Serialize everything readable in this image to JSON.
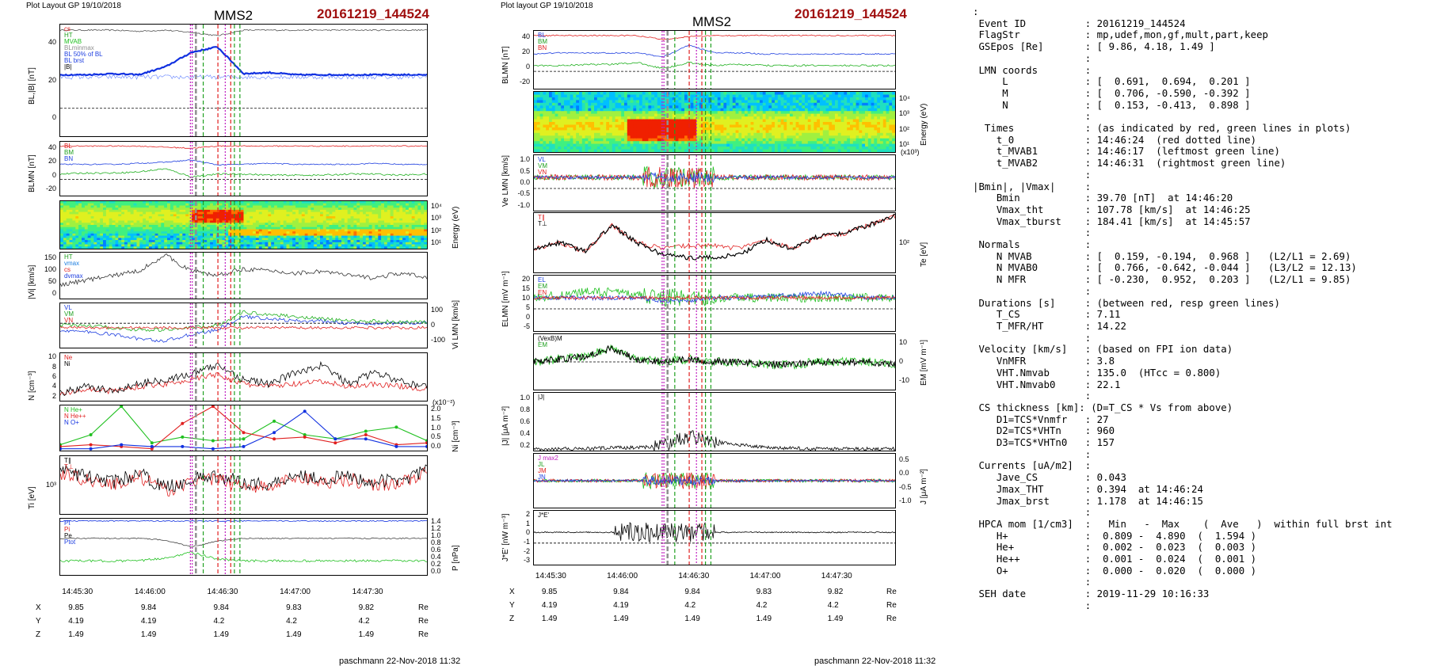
{
  "left": {
    "header": {
      "layout": "Plot Layout GP 19/10/2018",
      "sc": "MMS2",
      "event": "20161219_144524"
    },
    "footer": "paschmann 22-Nov-2018 11:32",
    "time_ticks": [
      "14:45:30",
      "14:46:00",
      "14:46:30",
      "14:47:00",
      "14:47:30"
    ],
    "pos_rows": [
      {
        "label": "X",
        "values": [
          "9.85",
          "9.84",
          "9.84",
          "9.83",
          "9.82"
        ],
        "unit": "Re"
      },
      {
        "label": "Y",
        "values": [
          "4.19",
          "4.19",
          "4.2",
          "4.2",
          "4.2"
        ],
        "unit": "Re"
      },
      {
        "label": "Z",
        "values": [
          "1.49",
          "1.49",
          "1.49",
          "1.49",
          "1.49"
        ],
        "unit": "Re"
      }
    ],
    "panels": {
      "p1": {
        "ylabel": "BL,|B| [nT]",
        "ticks": [
          "40",
          "20",
          "0"
        ],
        "legend": [
          "cs",
          "HT",
          "MVAB",
          "BLminmax",
          "BL 50% of BL",
          "BL brst",
          "|B|"
        ]
      },
      "p2": {
        "ylabel": "BLMN [nT]",
        "ticks": [
          "40",
          "20",
          "0",
          "-20"
        ],
        "legend": [
          "BL",
          "BM",
          "BN"
        ]
      },
      "p3": {
        "ylabel_r": "Energy (eV)",
        "ticks_r": [
          "10⁴",
          "10³",
          "10²",
          "10¹"
        ]
      },
      "p4": {
        "ylabel": "|Vi| [km/s]",
        "ticks": [
          "150",
          "100",
          "50",
          "0"
        ],
        "legend": [
          "HT",
          "vmax",
          "cs",
          "dvmax"
        ]
      },
      "p5": {
        "ylabel_r": "Vi LMN [km/s]",
        "ticks_r": [
          "100",
          "0",
          "-100"
        ],
        "legend": [
          "VL",
          "VM",
          "VN"
        ]
      },
      "p6": {
        "ylabel": "N [cm⁻³]",
        "ticks": [
          "10",
          "8",
          "6",
          "4",
          "2"
        ],
        "legend": [
          "Ne",
          "Ni"
        ]
      },
      "p7": {
        "ylabel_r": "Ni [cm⁻³]",
        "ticks_r": [
          "2.0",
          "1.5",
          "1.0",
          "0.5",
          "0.0"
        ],
        "scale": "(x10⁻²)",
        "legend": [
          "N He+",
          "N He++",
          "N O+"
        ]
      },
      "p8": {
        "ylabel": "Ti [eV]",
        "ticks": [
          "10³"
        ],
        "legend": [
          "T∥",
          "T⊥"
        ]
      },
      "p9": {
        "ylabel_r": "P [nPa]",
        "ticks_r": [
          "1.4",
          "1.2",
          "1.0",
          "0.8",
          "0.6",
          "0.4",
          "0.2",
          "0.0"
        ],
        "legend": [
          "Pt",
          "Pi",
          "Pe",
          "Ptot"
        ]
      }
    }
  },
  "middle": {
    "header": {
      "layout": "Plot layout GP 19/10/2018",
      "sc": "MMS2",
      "event": "20161219_144524"
    },
    "footer": "paschmann 22-Nov-2018 11:32",
    "time_ticks": [
      "14:45:30",
      "14:46:00",
      "14:46:30",
      "14:47:00",
      "14:47:30"
    ],
    "pos_rows": [
      {
        "label": "X",
        "values": [
          "9.85",
          "9.84",
          "9.84",
          "9.83",
          "9.82"
        ],
        "unit": "Re"
      },
      {
        "label": "Y",
        "values": [
          "4.19",
          "4.19",
          "4.2",
          "4.2",
          "4.2"
        ],
        "unit": "Re"
      },
      {
        "label": "Z",
        "values": [
          "1.49",
          "1.49",
          "1.49",
          "1.49",
          "1.49"
        ],
        "unit": "Re"
      }
    ],
    "panels": {
      "m1": {
        "ylabel": "BLMN [nT]",
        "ticks": [
          "40",
          "20",
          "0",
          "-20"
        ],
        "legend": [
          "BL",
          "BM",
          "BN"
        ]
      },
      "m2": {
        "ylabel_r": "Energy (eV)",
        "ticks_r": [
          "10⁴",
          "10³",
          "10²",
          "10¹"
        ]
      },
      "m3": {
        "ylabel": "Ve LMN [km/s]",
        "ticks": [
          "1.0",
          "0.5",
          "0.0",
          "-0.5",
          "-1.0"
        ],
        "scale": "(x10³)",
        "legend": [
          "VL",
          "VM",
          "VN"
        ]
      },
      "m4": {
        "ylabel_r": "Te [eV]",
        "ticks_r": [
          "10²"
        ],
        "legend": [
          "T∥",
          "T⊥"
        ]
      },
      "m5": {
        "ylabel": "ELMN [mV m⁻¹]",
        "ticks": [
          "20",
          "15",
          "10",
          "5",
          "0",
          "-5"
        ],
        "legend": [
          "EL",
          "EM",
          "EN"
        ]
      },
      "m6": {
        "ylabel_r": "EM [mV m⁻¹]",
        "ticks_r": [
          "10",
          "0",
          "-10"
        ],
        "legend": [
          "(VexB)M",
          "EM"
        ]
      },
      "m7": {
        "ylabel": "|J| [μA m⁻²]",
        "ticks": [
          "1.0",
          "0.8",
          "0.6",
          "0.4",
          "0.2"
        ],
        "legend": [
          "|J|"
        ]
      },
      "m8": {
        "ylabel_r": "J [μA m⁻²]",
        "ticks_r": [
          "0.5",
          "0.0",
          "-0.5",
          "-1.0"
        ],
        "legend": [
          "J max2",
          "JL",
          "JM",
          "JN"
        ]
      },
      "m9": {
        "ylabel": "J*E' [nW m⁻³]",
        "ticks": [
          "2",
          "1",
          "0",
          "-1",
          "-2",
          "-3"
        ],
        "legend": [
          "J*E'"
        ]
      }
    }
  },
  "text_panel": [
    ":",
    " Event ID          : 20161219_144524",
    " FlagStr           : mp,udef,mon,gf,mult,part,keep",
    " GSEpos [Re]       : [ 9.86, 4.18, 1.49 ]",
    "                   :",
    " LMN coords        :",
    "     L             : [  0.691,  0.694,  0.201 ]",
    "     M             : [  0.706, -0.590, -0.392 ]",
    "     N             : [  0.153, -0.413,  0.898 ]",
    "                   :",
    "  Times            : (as indicated by red, green lines in plots)",
    "    t_0            : 14:46:24  (red dotted line)",
    "    t_MVAB1        : 14:46:17  (leftmost green line)",
    "    t_MVAB2        : 14:46:31  (rightmost green line)",
    "                   :",
    "|Bmin|, |Vmax|     :",
    "    Bmin           : 39.70 [nT]  at 14:46:20",
    "    Vmax_tht       : 107.78 [km/s]  at 14:46:25",
    "    Vmax_tburst    : 184.41 [km/s]  at 14:45:57",
    "                   :",
    " Normals           :",
    "    N MVAB         : [  0.159, -0.194,  0.968 ]   (L2/L1 = 2.69)",
    "    N MVAB0        : [  0.766, -0.642, -0.044 ]   (L3/L2 = 12.13)",
    "    N MFR          : [ -0.230,  0.952,  0.203 ]   (L2/L1 = 9.85)",
    "                   :",
    " Durations [s]     : (between red, resp green lines)",
    "    T_CS           : 7.11",
    "    T_MFR/HT       : 14.22",
    "                   :",
    " Velocity [km/s]   : (based on FPI ion data)",
    "    VnMFR          : 3.8",
    "    VHT.Nmvab      : 135.0  (HTcc = 0.800)",
    "    VHT.Nmvab0     : 22.1",
    "                   :",
    " CS thickness [km]: (D=T_CS * Vs from above)",
    "    D1=TCS*Vnmfr   : 27",
    "    D2=TCS*VHTn    : 960",
    "    D3=TCS*VHTn0   : 157",
    "                   :",
    " Currents [uA/m2]  :",
    "    Jave_CS        : 0.043",
    "    Jmax_THT       : 0.394  at 14:46:24",
    "    Jmax_brst      : 1.178  at 14:46:15",
    "                   :",
    " HPCA mom [1/cm3]  :   Min   -  Max    (  Ave   )  within full brst int",
    "    H+             :  0.809 -  4.890  (  1.594 )",
    "    He+            :  0.002 -  0.023  (  0.003 )",
    "    He++           :  0.001 -  0.024  (  0.001 )",
    "    O+             :  0.000 -  0.020  (  0.000 )",
    "                   :",
    " SEH date          : 2019-11-29 10:16:33",
    "                   :"
  ],
  "chart_data": [
    {
      "type": "line",
      "title": "MMS2 20161219_144524 (Plot Layout GP 19/10/2018)",
      "x_ticks": [
        "14:45:30",
        "14:46:00",
        "14:46:30",
        "14:47:00",
        "14:47:30"
      ],
      "series_summary": [
        {
          "name": "BL brst",
          "panel": "BL,|B| [nT]",
          "approx": [
            9,
            9,
            10,
            9,
            14,
            0,
            -5,
            16,
            12,
            9,
            9,
            9,
            9,
            9,
            9
          ]
        },
        {
          "name": "|B|",
          "panel": "BL,|B| [nT]",
          "approx": [
            44,
            44,
            44,
            43,
            44,
            42,
            38,
            44,
            44,
            44,
            44,
            44,
            44,
            44,
            44
          ]
        },
        {
          "name": "|Vi|",
          "panel": "|Vi| [km/s]",
          "approx": [
            50,
            70,
            90,
            120,
            180,
            100,
            90,
            110,
            100,
            90,
            100,
            80,
            70,
            90,
            70
          ]
        },
        {
          "name": "Ni",
          "panel": "N [cm-3]",
          "approx": [
            3,
            4,
            3,
            4,
            5,
            6,
            8,
            6,
            5,
            7,
            8,
            5,
            7,
            6,
            5
          ]
        },
        {
          "name": "N He+",
          "panel": "Ni [cm-3] (x10-2)",
          "x": [
            0,
            1,
            2,
            3,
            4,
            5,
            6,
            7,
            8,
            9,
            10,
            11,
            12
          ],
          "approx": [
            0.3,
            0.8,
            2.3,
            0.4,
            0.7,
            0.5,
            0.6,
            1.5,
            0.8,
            0.6,
            1.0,
            1.2,
            0.5
          ]
        },
        {
          "name": "N He++",
          "panel": "Ni [cm-3] (x10-2)",
          "x": [
            0,
            1,
            2,
            3,
            4,
            5,
            6,
            7,
            8,
            9,
            10,
            11,
            12
          ],
          "approx": [
            0.2,
            0.3,
            0.2,
            0.1,
            1.4,
            2.4,
            0.9,
            0.6,
            0.7,
            0.4,
            0.8,
            0.3,
            0.4
          ]
        },
        {
          "name": "N O+",
          "panel": "Ni [cm-3] (x10-2)",
          "x": [
            0,
            1,
            2,
            3,
            4,
            5,
            6,
            7,
            8,
            9,
            10,
            11,
            12
          ],
          "approx": [
            0.1,
            0.1,
            0.3,
            0.2,
            0.2,
            0.1,
            0.2,
            0.9,
            2.0,
            0.6,
            0.6,
            0.2,
            0.2
          ]
        }
      ]
    },
    {
      "type": "line",
      "title": "MMS2 20161219_144524 (Plot layout GP 19/10/2018)",
      "x_ticks": [
        "14:45:30",
        "14:46:00",
        "14:46:30",
        "14:47:00",
        "14:47:30"
      ],
      "series_summary": [
        {
          "name": "|J|",
          "panel": "|J| [μA m-2]",
          "approx": [
            0.05,
            0.05,
            0.05,
            0.08,
            0.1,
            0.3,
            1.1,
            0.4,
            0.3,
            0.1,
            0.05,
            0.05,
            0.05,
            0.05,
            0.05
          ]
        },
        {
          "name": "Te",
          "panel": "Te [eV]",
          "approx": [
            70,
            80,
            60,
            100,
            70,
            60,
            60,
            50,
            60,
            80,
            60,
            90,
            100,
            120,
            150
          ]
        }
      ]
    }
  ]
}
